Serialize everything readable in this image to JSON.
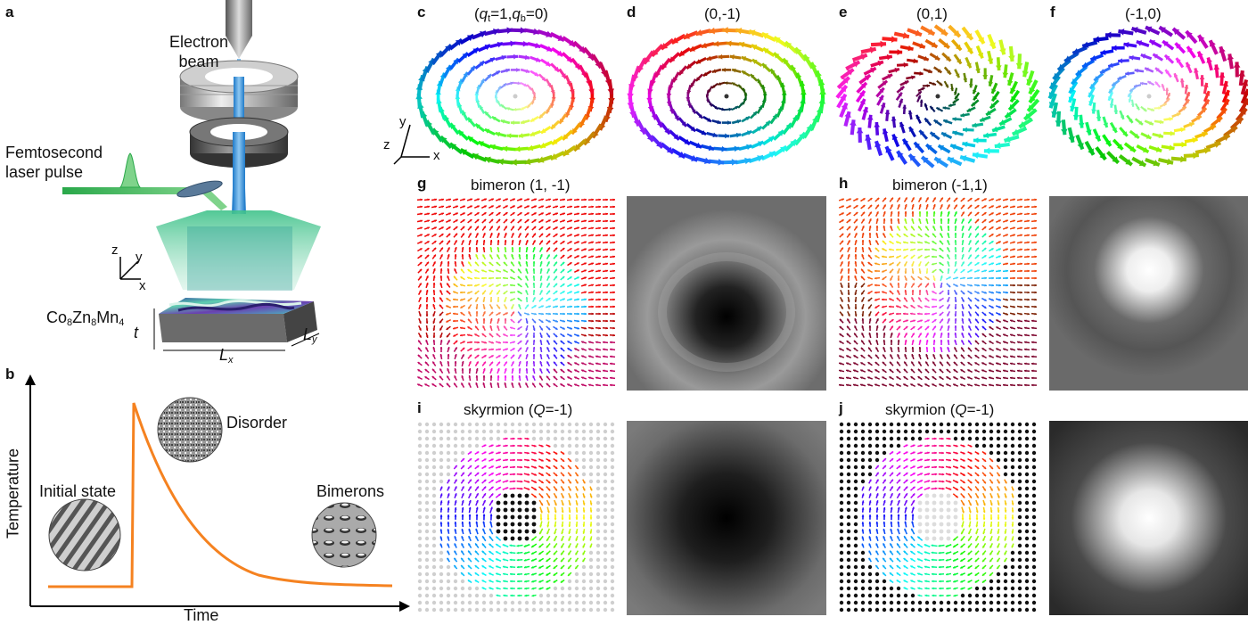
{
  "panels": {
    "a": {
      "label": "a",
      "electron_beam_1": "Electron",
      "electron_beam_2": "beam",
      "laser_1": "Femtosecond",
      "laser_2": "laser pulse",
      "axes": {
        "z": "z",
        "y": "y",
        "x": "x"
      },
      "material": {
        "co": "Co",
        "n1": "8",
        "zn": "Zn",
        "n2": "8",
        "mn": "Mn",
        "n3": "4"
      },
      "dims": {
        "t": "t",
        "lx": "L",
        "lx_sub": "x",
        "ly": "L",
        "ly_sub": "y"
      }
    },
    "b": {
      "label": "b",
      "ylabel": "Temperature",
      "xlabel": "Time",
      "states": {
        "initial": "Initial state",
        "disorder": "Disorder",
        "bimerons": "Bimerons"
      },
      "colors": {
        "curve": "#F58220"
      }
    },
    "c": {
      "label": "c",
      "title_parts": {
        "open": "(",
        "qt": "q",
        "qt_sub": "t",
        "mid1": "=1,",
        "qb": "q",
        "qb_sub": "b",
        "mid2": "=0)"
      }
    },
    "d": {
      "label": "d",
      "title": "(0,-1)"
    },
    "e": {
      "label": "e",
      "title": "(0,1)"
    },
    "f": {
      "label": "f",
      "title": "(-1,0)"
    },
    "g": {
      "label": "g",
      "title": "bimeron (1, -1)"
    },
    "h": {
      "label": "h",
      "title": "bimeron (-1,1)"
    },
    "i": {
      "label": "i",
      "title_pre": "skyrmion (",
      "title_q": "Q",
      "title_post": "=-1)"
    },
    "j": {
      "label": "j",
      "title_pre": "skyrmion (",
      "title_q": "Q",
      "title_post": "=-1)"
    },
    "xyz": {
      "z": "z",
      "y": "y",
      "x": "x"
    }
  }
}
